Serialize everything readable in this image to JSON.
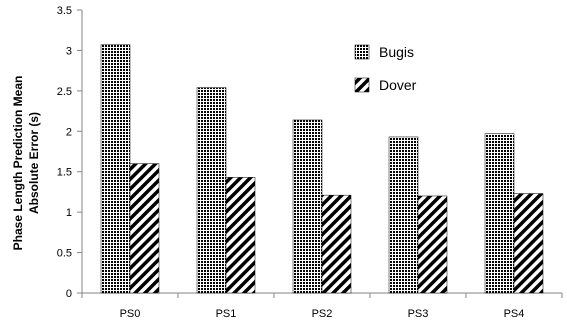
{
  "chart_data": {
    "type": "bar",
    "title": "",
    "xlabel": "",
    "ylabel": "Phase Length Prediction Mean Absolute Error (s)",
    "ylabel_lines": [
      "Phase Length Prediction Mean",
      "Absolute Error (s)"
    ],
    "categories": [
      "PS0",
      "PS1",
      "PS2",
      "PS3",
      "PS4"
    ],
    "series": [
      {
        "name": "Bugis",
        "values": [
          3.07,
          2.54,
          2.14,
          1.93,
          1.97
        ],
        "pattern": "dots",
        "color": "#000000"
      },
      {
        "name": "Dover",
        "values": [
          1.6,
          1.43,
          1.21,
          1.2,
          1.23
        ],
        "pattern": "diagonal-stripes",
        "color": "#000000"
      }
    ],
    "ylim": [
      0,
      3.5
    ],
    "yticks": [
      "0",
      "0.5",
      "1",
      "1.5",
      "2",
      "2.5",
      "3",
      "3.5"
    ],
    "grid": false,
    "legend_position": "top-right"
  }
}
